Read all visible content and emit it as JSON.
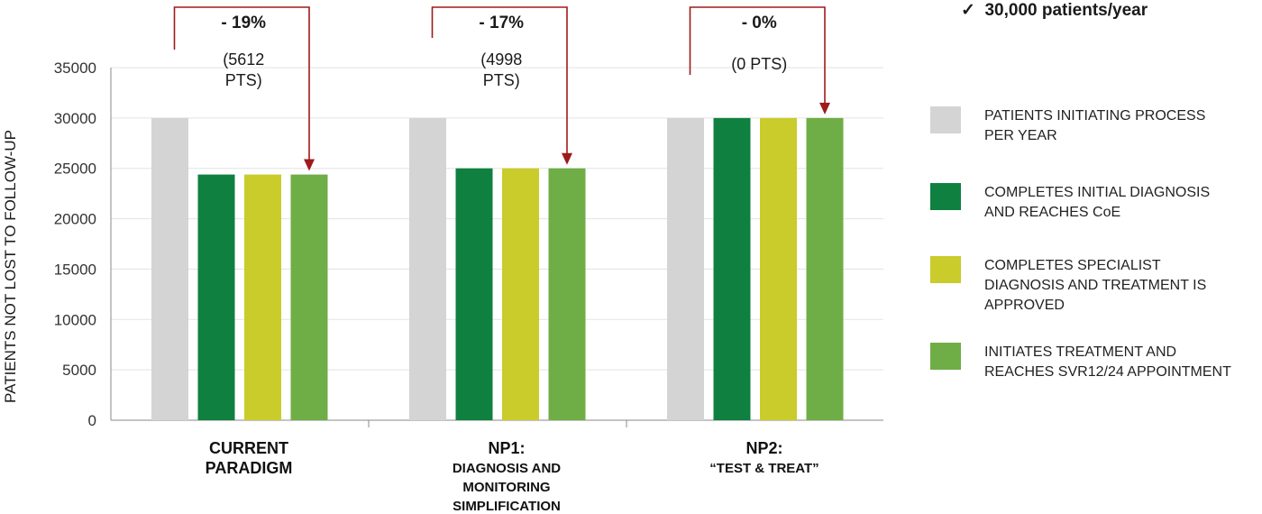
{
  "colors": {
    "gray": "#d4d4d4",
    "dark_green": "#0f8040",
    "yellow_green": "#c9cc2a",
    "light_green": "#6fad46",
    "arrow": "#9e1b1b",
    "axis": "#888888",
    "grid": "#e3e3e3"
  },
  "note": {
    "check": "✓",
    "text": "30,000 patients/year"
  },
  "chart_data": {
    "type": "bar",
    "ylabel": "PATIENTS NOT LOST TO FOLLOW-UP",
    "ylim": [
      0,
      35000
    ],
    "yticks": [
      0,
      5000,
      10000,
      15000,
      20000,
      25000,
      30000,
      35000
    ],
    "grid": true,
    "categories": [
      {
        "main": [
          "CURRENT",
          "PARADIGM"
        ],
        "sub": []
      },
      {
        "main": [
          "NP1:"
        ],
        "sub": [
          "DIAGNOSIS AND",
          "MONITORING",
          "SIMPLIFICATION"
        ]
      },
      {
        "main": [
          "NP2:"
        ],
        "sub": [
          "“TEST & TREAT”"
        ]
      }
    ],
    "series": [
      {
        "name": "PATIENTS INITIATING PROCESS PER YEAR",
        "color": "#d4d4d4",
        "values": [
          30000,
          30000,
          30000
        ]
      },
      {
        "name": "COMPLETES INITIAL DIAGNOSIS AND REACHES CoE",
        "color": "#0f8040",
        "values": [
          24388,
          25002,
          30000
        ]
      },
      {
        "name": "COMPLETES SPECIALIST DIAGNOSIS AND TREATMENT IS APPROVED",
        "color": "#c9cc2a",
        "values": [
          24388,
          25002,
          30000
        ]
      },
      {
        "name": "INITIATES TREATMENT AND REACHES SVR12/24 APPOINTMENT",
        "color": "#6fad46",
        "values": [
          24388,
          25002,
          30000
        ]
      }
    ],
    "annotations": [
      {
        "percent": "- 19%",
        "pts": [
          "(5612",
          "PTS)"
        ]
      },
      {
        "percent": "- 17%",
        "pts": [
          "(4998",
          "PTS)"
        ]
      },
      {
        "percent": "- 0%",
        "pts": [
          "(0 PTS)"
        ]
      }
    ]
  },
  "legend": [
    {
      "label": "PATIENTS INITIATING PROCESS\nPER YEAR",
      "color": "#d4d4d4"
    },
    {
      "label": "COMPLETES INITIAL DIAGNOSIS\nAND REACHES CoE",
      "color": "#0f8040"
    },
    {
      "label": "COMPLETES SPECIALIST\nDIAGNOSIS AND TREATMENT IS\nAPPROVED",
      "color": "#c9cc2a"
    },
    {
      "label": "INITIATES TREATMENT AND\nREACHES SVR12/24 APPOINTMENT",
      "color": "#6fad46"
    }
  ]
}
